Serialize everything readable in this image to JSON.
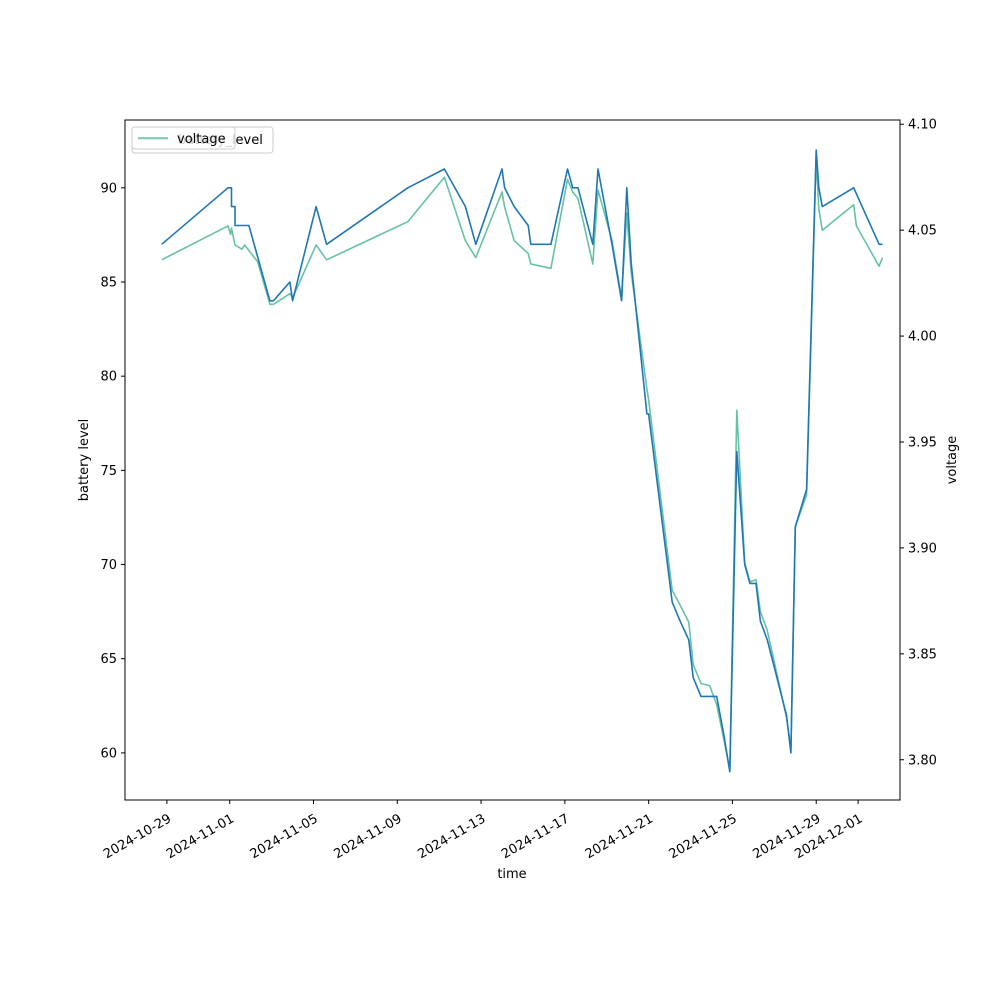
{
  "chart_data": {
    "type": "line",
    "title": "",
    "xlabel": "time",
    "ylabel_left": "battery level",
    "ylabel_right": "voltage",
    "xlim": [
      "2024-10-27",
      "2024-12-03"
    ],
    "ylim_left": [
      57.5,
      93.6
    ],
    "ylim_right": [
      3.781,
      4.102
    ],
    "x_ticks": [
      "2024-10-29",
      "2024-11-01",
      "2024-11-05",
      "2024-11-09",
      "2024-11-13",
      "2024-11-17",
      "2024-11-21",
      "2024-11-25",
      "2024-11-29",
      "2024-12-01"
    ],
    "y_ticks_left": [
      "60",
      "65",
      "70",
      "75",
      "80",
      "85",
      "90"
    ],
    "y_ticks_right": [
      "3.80",
      "3.85",
      "3.90",
      "3.95",
      "4.00",
      "4.05",
      "4.10"
    ],
    "legend": {
      "placement": "upper left",
      "entries": [
        "battery_level",
        "voltage"
      ],
      "overlapping": true
    },
    "grid": false,
    "series": [
      {
        "name": "battery_level",
        "axis": "left",
        "color": "#1f77b4",
        "points": [
          [
            "2024-10-28T18:00",
            87
          ],
          [
            "2024-10-31T22:00",
            90
          ],
          [
            "2024-11-01T02:00",
            90
          ],
          [
            "2024-11-01T02:00",
            89
          ],
          [
            "2024-11-01T06:00",
            89
          ],
          [
            "2024-11-01T06:00",
            88
          ],
          [
            "2024-11-01T22:00",
            88
          ],
          [
            "2024-11-02T22:00",
            84
          ],
          [
            "2024-11-03T02:00",
            84
          ],
          [
            "2024-11-03T21:00",
            85
          ],
          [
            "2024-11-04T00:00",
            84
          ],
          [
            "2024-11-05T03:00",
            89
          ],
          [
            "2024-11-05T15:00",
            87
          ],
          [
            "2024-11-09T12:00",
            90
          ],
          [
            "2024-11-11T06:00",
            91
          ],
          [
            "2024-11-12T06:00",
            89
          ],
          [
            "2024-11-12T18:00",
            87
          ],
          [
            "2024-11-14T00:00",
            91
          ],
          [
            "2024-11-14T03:00",
            90
          ],
          [
            "2024-11-14T14:00",
            89
          ],
          [
            "2024-11-15T06:00",
            88
          ],
          [
            "2024-11-15T09:00",
            87
          ],
          [
            "2024-11-16T08:00",
            87
          ],
          [
            "2024-11-17T03:00",
            91
          ],
          [
            "2024-11-17T09:00",
            90
          ],
          [
            "2024-11-17T15:00",
            90
          ],
          [
            "2024-11-18T08:00",
            87
          ],
          [
            "2024-11-18T14:00",
            91
          ],
          [
            "2024-11-19T06:00",
            87
          ],
          [
            "2024-11-19T17:00",
            84
          ],
          [
            "2024-11-19T23:00",
            90
          ],
          [
            "2024-11-20T04:00",
            86
          ],
          [
            "2024-11-20T22:00",
            78
          ],
          [
            "2024-11-21T00:00",
            78
          ],
          [
            "2024-11-22T03:00",
            68
          ],
          [
            "2024-11-22T12:00",
            67
          ],
          [
            "2024-11-22T22:00",
            66
          ],
          [
            "2024-11-23T03:00",
            64
          ],
          [
            "2024-11-23T12:00",
            63
          ],
          [
            "2024-11-23T22:00",
            63
          ],
          [
            "2024-11-24T06:00",
            63
          ],
          [
            "2024-11-24T14:00",
            61
          ],
          [
            "2024-11-24T21:00",
            59
          ],
          [
            "2024-11-25T05:00",
            76
          ],
          [
            "2024-11-25T14:00",
            70
          ],
          [
            "2024-11-25T20:00",
            69
          ],
          [
            "2024-11-26T03:00",
            69
          ],
          [
            "2024-11-26T08:00",
            67
          ],
          [
            "2024-11-26T16:00",
            66
          ],
          [
            "2024-11-27T14:00",
            62
          ],
          [
            "2024-11-27T19:00",
            60
          ],
          [
            "2024-11-28T00:00",
            72
          ],
          [
            "2024-11-28T13:00",
            74
          ],
          [
            "2024-11-29T00:00",
            92
          ],
          [
            "2024-11-29T03:00",
            90
          ],
          [
            "2024-11-29T07:00",
            89
          ],
          [
            "2024-11-30T19:00",
            90
          ],
          [
            "2024-12-02T00:00",
            87
          ],
          [
            "2024-12-02T04:00",
            87
          ]
        ]
      },
      {
        "name": "voltage",
        "axis": "right",
        "color": "#66c2a5",
        "points": [
          [
            "2024-10-28T18:00",
            4.036
          ],
          [
            "2024-10-31T22:00",
            4.052
          ],
          [
            "2024-11-01T01:00",
            4.048
          ],
          [
            "2024-11-01T02:00",
            4.051
          ],
          [
            "2024-11-01T04:00",
            4.047
          ],
          [
            "2024-11-01T06:00",
            4.043
          ],
          [
            "2024-11-01T14:00",
            4.041
          ],
          [
            "2024-11-01T17:00",
            4.043
          ],
          [
            "2024-11-02T08:00",
            4.035
          ],
          [
            "2024-11-02T22:00",
            4.015
          ],
          [
            "2024-11-03T02:00",
            4.015
          ],
          [
            "2024-11-03T21:00",
            4.02
          ],
          [
            "2024-11-04T00:00",
            4.018
          ],
          [
            "2024-11-05T03:00",
            4.043
          ],
          [
            "2024-11-05T15:00",
            4.036
          ],
          [
            "2024-11-09T12:00",
            4.054
          ],
          [
            "2024-11-11T06:00",
            4.075
          ],
          [
            "2024-11-12T06:00",
            4.045
          ],
          [
            "2024-11-12T18:00",
            4.037
          ],
          [
            "2024-11-14T00:00",
            4.068
          ],
          [
            "2024-11-14T03:00",
            4.061
          ],
          [
            "2024-11-14T14:00",
            4.045
          ],
          [
            "2024-11-15T06:00",
            4.039
          ],
          [
            "2024-11-15T09:00",
            4.034
          ],
          [
            "2024-11-16T08:00",
            4.032
          ],
          [
            "2024-11-17T03:00",
            4.074
          ],
          [
            "2024-11-17T09:00",
            4.068
          ],
          [
            "2024-11-17T15:00",
            4.065
          ],
          [
            "2024-11-18T08:00",
            4.034
          ],
          [
            "2024-11-18T14:00",
            4.069
          ],
          [
            "2024-11-19T06:00",
            4.045
          ],
          [
            "2024-11-19T17:00",
            4.018
          ],
          [
            "2024-11-19T23:00",
            4.058
          ],
          [
            "2024-11-20T04:00",
            4.03
          ],
          [
            "2024-11-20T22:00",
            3.975
          ],
          [
            "2024-11-21T00:00",
            3.97
          ],
          [
            "2024-11-22T03:00",
            3.88
          ],
          [
            "2024-11-22T12:00",
            3.873
          ],
          [
            "2024-11-22T22:00",
            3.865
          ],
          [
            "2024-11-23T03:00",
            3.845
          ],
          [
            "2024-11-23T12:00",
            3.836
          ],
          [
            "2024-11-23T22:00",
            3.835
          ],
          [
            "2024-11-24T06:00",
            3.826
          ],
          [
            "2024-11-24T14:00",
            3.81
          ],
          [
            "2024-11-24T21:00",
            3.795
          ],
          [
            "2024-11-25T05:00",
            3.965
          ],
          [
            "2024-11-25T14:00",
            3.893
          ],
          [
            "2024-11-25T20:00",
            3.884
          ],
          [
            "2024-11-26T03:00",
            3.885
          ],
          [
            "2024-11-26T08:00",
            3.87
          ],
          [
            "2024-11-26T16:00",
            3.861
          ],
          [
            "2024-11-27T14:00",
            3.82
          ],
          [
            "2024-11-27T19:00",
            3.805
          ],
          [
            "2024-11-28T00:00",
            3.91
          ],
          [
            "2024-11-28T13:00",
            3.925
          ],
          [
            "2024-11-29T00:00",
            4.085
          ],
          [
            "2024-11-29T03:00",
            4.06
          ],
          [
            "2024-11-29T07:00",
            4.05
          ],
          [
            "2024-11-30T19:00",
            4.062
          ],
          [
            "2024-11-30T22:00",
            4.052
          ],
          [
            "2024-12-02T00:00",
            4.033
          ],
          [
            "2024-12-02T04:00",
            4.037
          ]
        ]
      }
    ]
  }
}
